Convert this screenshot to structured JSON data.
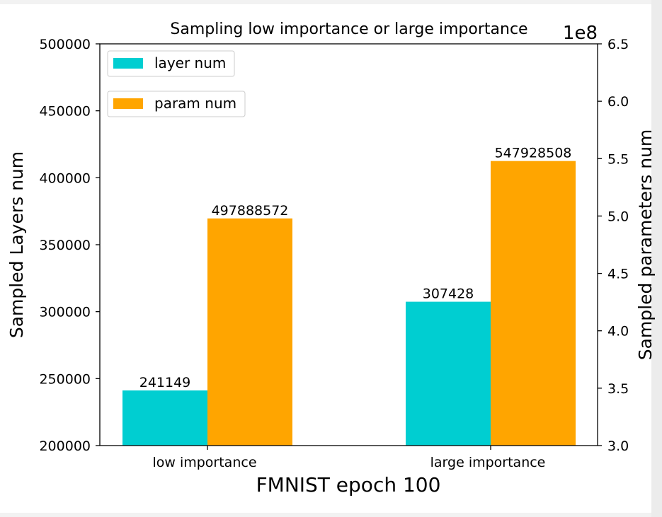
{
  "chart_data": {
    "type": "bar",
    "title": "Sampling low importance or large importance",
    "xlabel": "FMNIST epoch 100",
    "categories": [
      "low importance",
      "large importance"
    ],
    "left_axis": {
      "label": "Sampled Layers num",
      "ylim": [
        200000,
        500000
      ],
      "ticks": [
        200000,
        250000,
        300000,
        350000,
        400000,
        450000,
        500000
      ],
      "tick_labels": [
        "200000",
        "250000",
        "300000",
        "350000",
        "400000",
        "450000",
        "500000"
      ]
    },
    "right_axis": {
      "label": "Sampled parameters num",
      "ylim": [
        300000000,
        650000000
      ],
      "ticks": [
        300000000,
        350000000,
        400000000,
        450000000,
        500000000,
        550000000,
        600000000,
        650000000
      ],
      "tick_labels": [
        "3.0",
        "3.5",
        "4.0",
        "4.5",
        "5.0",
        "5.5",
        "6.0",
        "6.5"
      ],
      "offset_text": "1e8"
    },
    "series": [
      {
        "name": "layer num",
        "axis": "left",
        "color": "#00CED1",
        "values": [
          241149,
          307428
        ],
        "value_labels": [
          "241149",
          "307428"
        ]
      },
      {
        "name": "param num",
        "axis": "right",
        "color": "#FFA500",
        "values": [
          497888572,
          547928508
        ],
        "value_labels": [
          "497888572",
          "547928508"
        ]
      }
    ],
    "legend": "top-left (two separate boxes)",
    "grid": false
  }
}
